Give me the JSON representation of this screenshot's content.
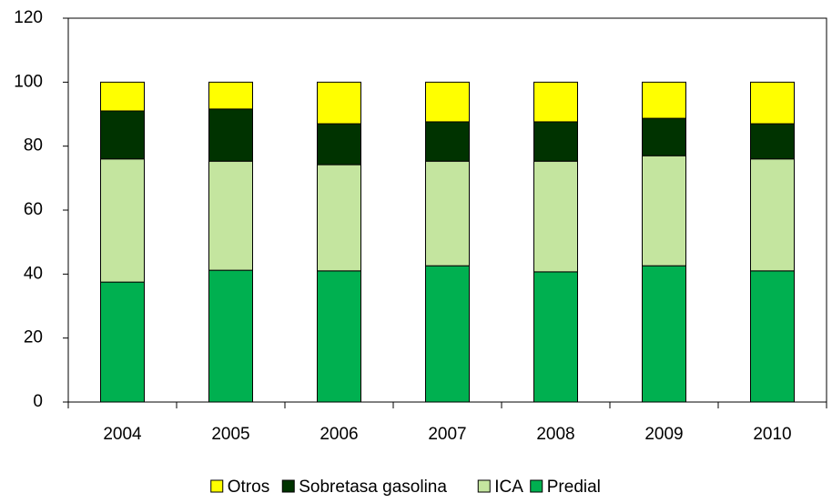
{
  "chart_data": {
    "type": "stacked-bar",
    "categories": [
      "2004",
      "2005",
      "2006",
      "2007",
      "2008",
      "2009",
      "2010"
    ],
    "series": [
      {
        "name": "Predial",
        "color": "#00b050",
        "values": [
          37.5,
          41.2,
          41,
          42.6,
          40.7,
          42.6,
          41
        ]
      },
      {
        "name": "ICA",
        "color": "#c4e59f",
        "values": [
          38.5,
          34.1,
          33.2,
          32.7,
          34.6,
          34.4,
          35
        ]
      },
      {
        "name": "Sobretasa gasolina",
        "color": "#003300",
        "values": [
          15,
          16.3,
          12.8,
          12.3,
          12.3,
          11.7,
          11
        ]
      },
      {
        "name": "Otros",
        "color": "#ffff00",
        "values": [
          9,
          8.4,
          13,
          12.4,
          12.4,
          11.3,
          13
        ]
      }
    ],
    "ylim": [
      0,
      120
    ],
    "yticks": [
      0,
      20,
      40,
      60,
      80,
      100,
      120
    ],
    "grid": false,
    "legend": "bottom"
  }
}
